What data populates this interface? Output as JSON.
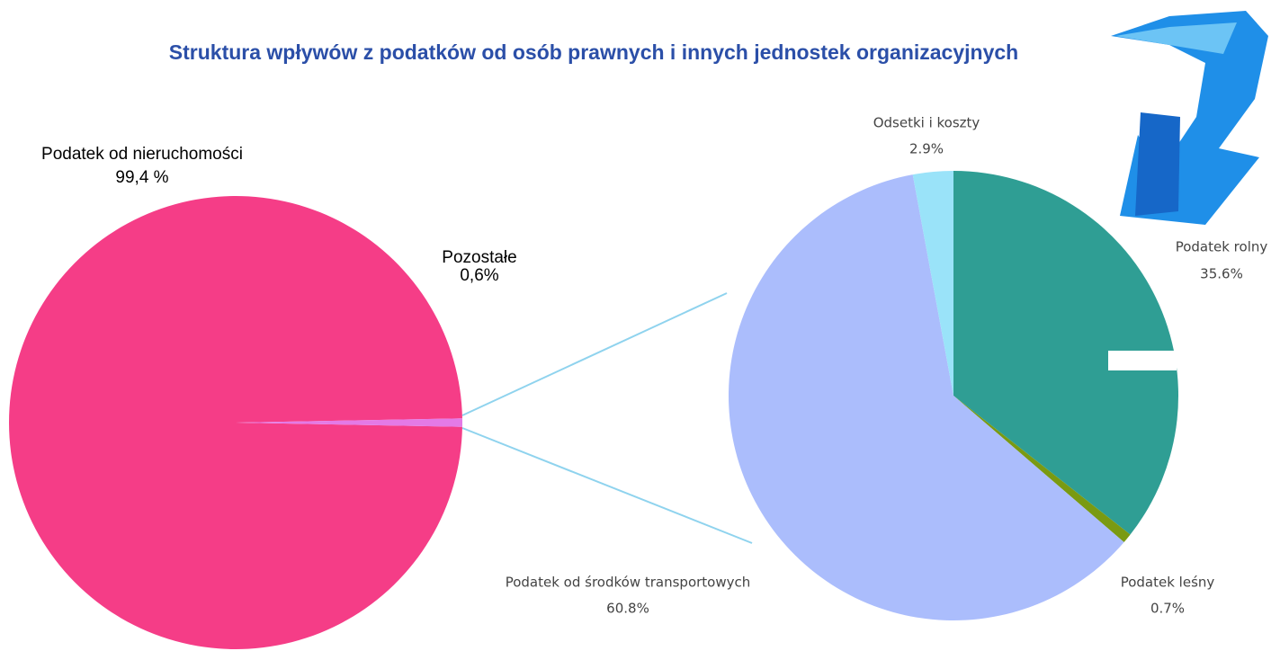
{
  "chart_data": [
    {
      "type": "pie",
      "title": "Struktura wpływów z podatków od osób prawnych i innych jednostek organizacyjnych",
      "categories": [
        "Podatek od nieruchomości",
        "Pozostałe"
      ],
      "values": [
        99.4,
        0.6
      ],
      "value_labels": [
        "99,4 %",
        "0,6%"
      ],
      "colors": [
        "#f53d87",
        "#e47ae6"
      ]
    },
    {
      "type": "pie",
      "categories": [
        "Podatek rolny",
        "Podatek leśny",
        "Podatek od środków transportowych",
        "Odsetki i koszty"
      ],
      "values": [
        35.6,
        0.7,
        60.8,
        2.9
      ],
      "value_labels": [
        "35.6%",
        "0.7%",
        "60.8%",
        "2.9%"
      ],
      "colors": [
        "#2f9e94",
        "#7a9a12",
        "#abbdfc",
        "#9ae3f9"
      ]
    }
  ]
}
